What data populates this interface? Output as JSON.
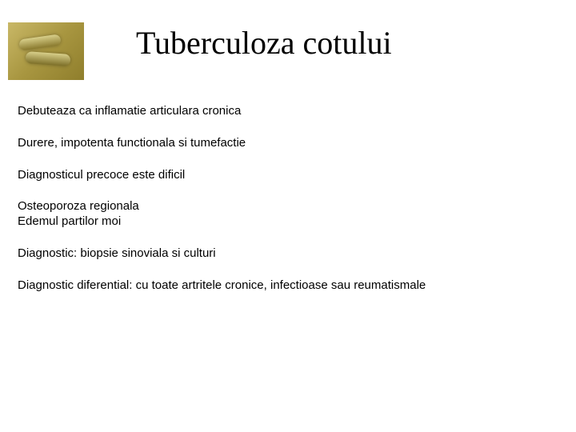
{
  "title": "Tuberculoza cotului",
  "thumb": {
    "bg_gradient": [
      "#c9b867",
      "#a89640",
      "#8f7e2c"
    ],
    "rod_gradient": [
      "#d8cf8a",
      "#8a7a2e"
    ]
  },
  "lines": {
    "l1": "Debuteaza ca inflamatie articulara cronica",
    "l2": "Durere, impotenta functionala si tumefactie",
    "l3": "Diagnosticul precoce este dificil",
    "l4a": "Osteoporoza regionala",
    "l4b": "Edemul partilor moi",
    "l5": "Diagnostic: biopsie sinoviala si culturi",
    "l6": "Diagnostic diferential: cu toate artritele cronice, infectioase sau reumatismale"
  },
  "typography": {
    "title_font": "Times New Roman",
    "title_size_pt": 30,
    "body_font": "Arial",
    "body_size_pt": 11,
    "text_color": "#000000",
    "background_color": "#ffffff"
  }
}
